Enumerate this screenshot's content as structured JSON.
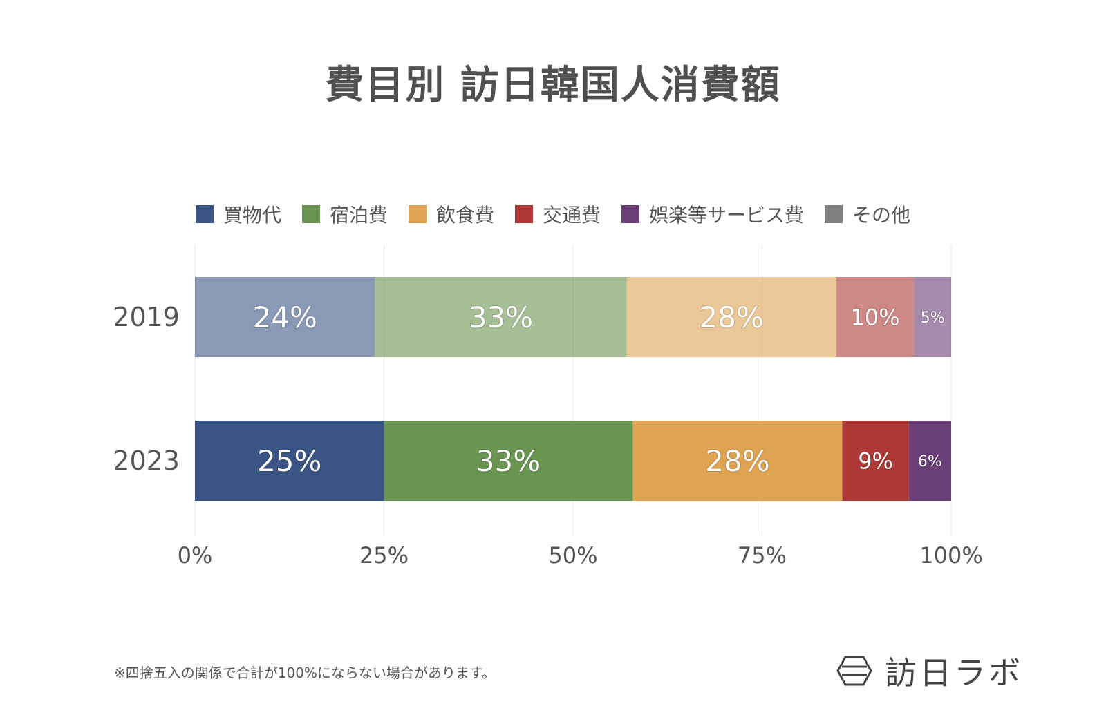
{
  "title": "費目別 訪日韓国人消費額",
  "footnote": "※四捨五入の関係で合計が100%にならない場合があります。",
  "brand": {
    "name": "訪日ラボ",
    "icon": "hexagon-logo-icon"
  },
  "legend": [
    {
      "label": "買物代",
      "color": "#3A5585"
    },
    {
      "label": "宿泊費",
      "color": "#6A9550"
    },
    {
      "label": "飲食費",
      "color": "#DEA452"
    },
    {
      "label": "交通費",
      "color": "#AE3836"
    },
    {
      "label": "娯楽等サービス費",
      "color": "#6A3E78"
    },
    {
      "label": "その他",
      "color": "#808080"
    }
  ],
  "chart_data": {
    "type": "bar",
    "orientation": "horizontal",
    "stacked": true,
    "categories": [
      "2019",
      "2023"
    ],
    "series": [
      {
        "name": "買物代",
        "values": [
          23.8,
          25.0
        ],
        "labels": [
          "24%",
          "25%"
        ]
      },
      {
        "name": "宿泊費",
        "values": [
          33.3,
          32.9
        ],
        "labels": [
          "33%",
          "33%"
        ]
      },
      {
        "name": "飲食費",
        "values": [
          27.7,
          27.7
        ],
        "labels": [
          "28%",
          "28%"
        ]
      },
      {
        "name": "交通費",
        "values": [
          10.3,
          8.8
        ],
        "labels": [
          "10%",
          "9%"
        ]
      },
      {
        "name": "娯楽等サービス費",
        "values": [
          4.9,
          5.6
        ],
        "labels": [
          "5%",
          "6%"
        ]
      },
      {
        "name": "その他",
        "values": [
          0.0,
          0.0
        ],
        "labels": [
          "",
          ""
        ]
      }
    ],
    "xlim": [
      0,
      100
    ],
    "xticks": [
      "0%",
      "25%",
      "50%",
      "75%",
      "100%"
    ],
    "xtick_values": [
      0,
      25,
      50,
      75,
      100
    ],
    "faded_categories": [
      "2019"
    ],
    "grid": true,
    "legend_position": "top"
  }
}
